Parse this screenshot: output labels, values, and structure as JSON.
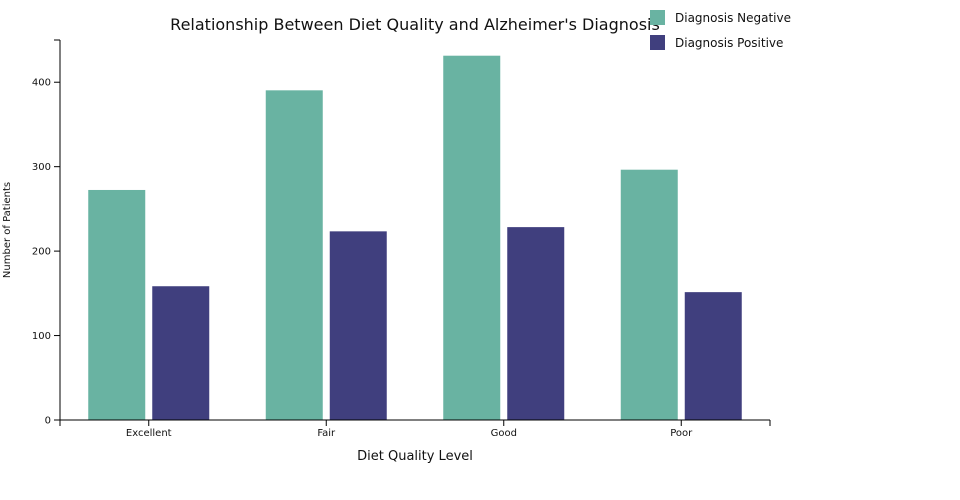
{
  "chart_data": {
    "type": "bar",
    "title": "Relationship Between Diet Quality and Alzheimer's Diagnosis",
    "xlabel": "Diet Quality Level",
    "ylabel": "Number of Patients",
    "categories": [
      "Excellent",
      "Fair",
      "Good",
      "Poor"
    ],
    "series": [
      {
        "name": "Diagnosis Negative",
        "color": "#69b3a2",
        "values": [
          273,
          391,
          432,
          297
        ]
      },
      {
        "name": "Diagnosis Positive",
        "color": "#403f7e",
        "values": [
          159,
          224,
          229,
          152
        ]
      }
    ],
    "ylim": [
      0,
      450
    ],
    "yticks": [
      0,
      100,
      200,
      300,
      400
    ],
    "grid": false,
    "legend_position": "top-right"
  }
}
